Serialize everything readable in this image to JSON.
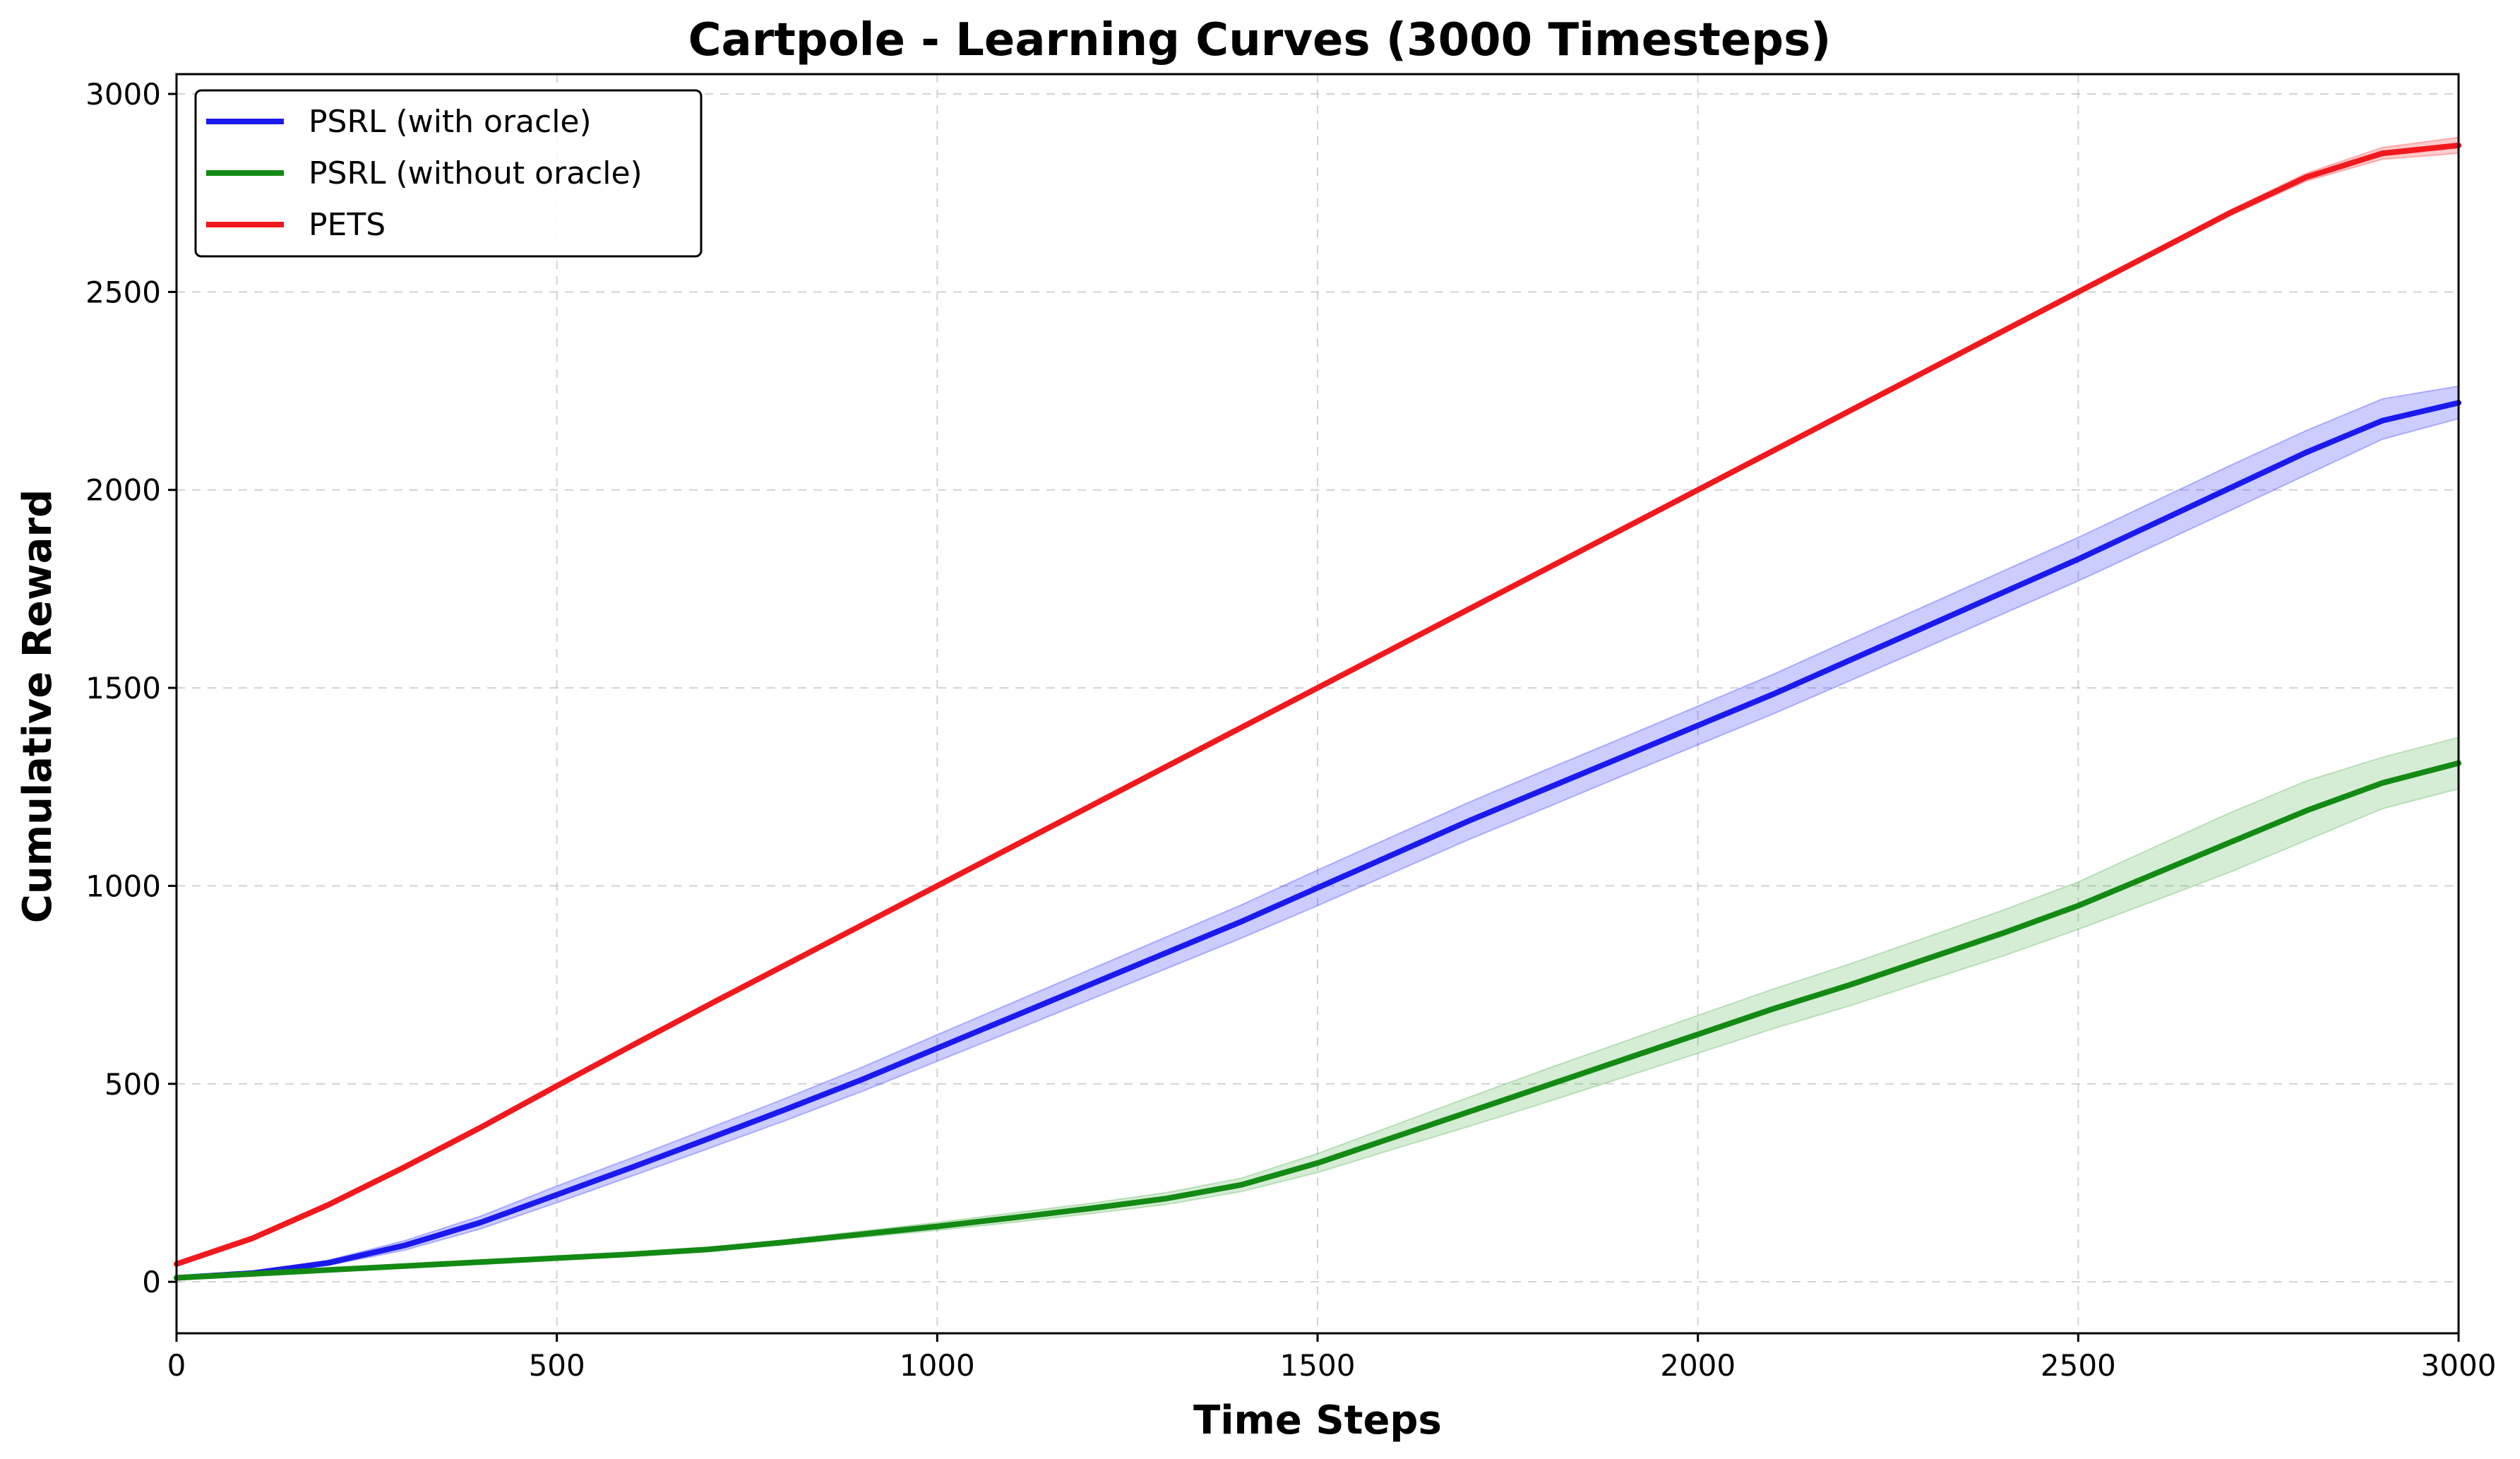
{
  "chart_data": {
    "type": "line",
    "title": "Cartpole - Learning Curves (3000 Timesteps)",
    "xlabel": "Time Steps",
    "ylabel": "Cumulative Reward",
    "xlim": [
      0,
      3000
    ],
    "ylim": [
      -130,
      3050
    ],
    "xticks": [
      0,
      500,
      1000,
      1500,
      2000,
      2500,
      3000
    ],
    "xtick_labels": [
      "0",
      "500",
      "1000",
      "1500",
      "2000",
      "2500",
      "3000"
    ],
    "yticks": [
      0,
      500,
      1000,
      1500,
      2000,
      2500,
      3000
    ],
    "ytick_labels": [
      "0",
      "500",
      "1000",
      "1500",
      "2000",
      "2500",
      "3000"
    ],
    "grid": true,
    "legend_position": "top-left",
    "x": [
      0,
      100,
      200,
      300,
      400,
      500,
      600,
      700,
      800,
      900,
      1000,
      1100,
      1200,
      1300,
      1400,
      1500,
      1600,
      1700,
      1800,
      1900,
      2000,
      2100,
      2200,
      2300,
      2400,
      2500,
      2600,
      2700,
      2800,
      2900,
      3000
    ],
    "series": [
      {
        "name": "PSRL (with oracle)",
        "color": "#1a1aee",
        "band_color": "#0000ff",
        "values": [
          10,
          22,
          48,
          92,
          150,
          220,
          290,
          362,
          435,
          510,
          590,
          670,
          750,
          830,
          910,
          995,
          1080,
          1165,
          1245,
          1325,
          1405,
          1485,
          1570,
          1655,
          1740,
          1825,
          1915,
          2005,
          2095,
          2175,
          2220
        ],
        "lower": [
          10,
          20,
          42,
          80,
          134,
          200,
          268,
          337,
          407,
          480,
          557,
          634,
          712,
          790,
          868,
          950,
          1034,
          1118,
          1197,
          1277,
          1356,
          1435,
          1518,
          1602,
          1686,
          1770,
          1859,
          1948,
          2038,
          2128,
          2180
        ],
        "upper": [
          10,
          24,
          55,
          104,
          166,
          242,
          314,
          388,
          463,
          541,
          624,
          706,
          788,
          870,
          952,
          1040,
          1126,
          1212,
          1293,
          1373,
          1454,
          1535,
          1622,
          1708,
          1794,
          1880,
          1971,
          2062,
          2150,
          2230,
          2262
        ]
      },
      {
        "name": "PSRL (without oracle)",
        "color": "#138a13",
        "band_color": "#2ca02c",
        "values": [
          10,
          20,
          30,
          40,
          50,
          60,
          70,
          82,
          100,
          120,
          140,
          162,
          185,
          210,
          245,
          300,
          365,
          430,
          495,
          560,
          625,
          690,
          750,
          815,
          880,
          950,
          1030,
          1110,
          1190,
          1260,
          1310
        ],
        "lower": [
          10,
          19,
          28,
          38,
          48,
          58,
          67,
          78,
          94,
          112,
          130,
          150,
          172,
          195,
          228,
          276,
          335,
          393,
          453,
          515,
          577,
          640,
          697,
          760,
          822,
          890,
          962,
          1035,
          1115,
          1195,
          1245
        ],
        "upper": [
          10,
          21,
          32,
          42,
          52,
          62,
          73,
          86,
          106,
          128,
          150,
          174,
          198,
          225,
          262,
          324,
          395,
          467,
          537,
          605,
          673,
          740,
          803,
          870,
          938,
          1010,
          1098,
          1185,
          1265,
          1325,
          1375
        ]
      },
      {
        "name": "PETS",
        "color": "#f0191e",
        "band_color": "#ff0000",
        "values": [
          45,
          110,
          195,
          290,
          390,
          495,
          598,
          700,
          800,
          900,
          1000,
          1100,
          1200,
          1300,
          1400,
          1500,
          1600,
          1700,
          1800,
          1900,
          2000,
          2100,
          2200,
          2300,
          2400,
          2500,
          2600,
          2700,
          2790,
          2850,
          2870
        ],
        "lower": [
          43,
          107,
          192,
          287,
          387,
          492,
          595,
          697,
          797,
          897,
          997,
          1097,
          1197,
          1297,
          1397,
          1497,
          1597,
          1697,
          1797,
          1897,
          1997,
          2097,
          2197,
          2297,
          2397,
          2496,
          2595,
          2693,
          2780,
          2835,
          2850
        ],
        "upper": [
          47,
          113,
          198,
          293,
          393,
          498,
          601,
          703,
          803,
          903,
          1003,
          1103,
          1203,
          1303,
          1403,
          1503,
          1603,
          1703,
          1803,
          1903,
          2003,
          2103,
          2203,
          2303,
          2403,
          2504,
          2605,
          2707,
          2800,
          2865,
          2890
        ]
      }
    ]
  }
}
